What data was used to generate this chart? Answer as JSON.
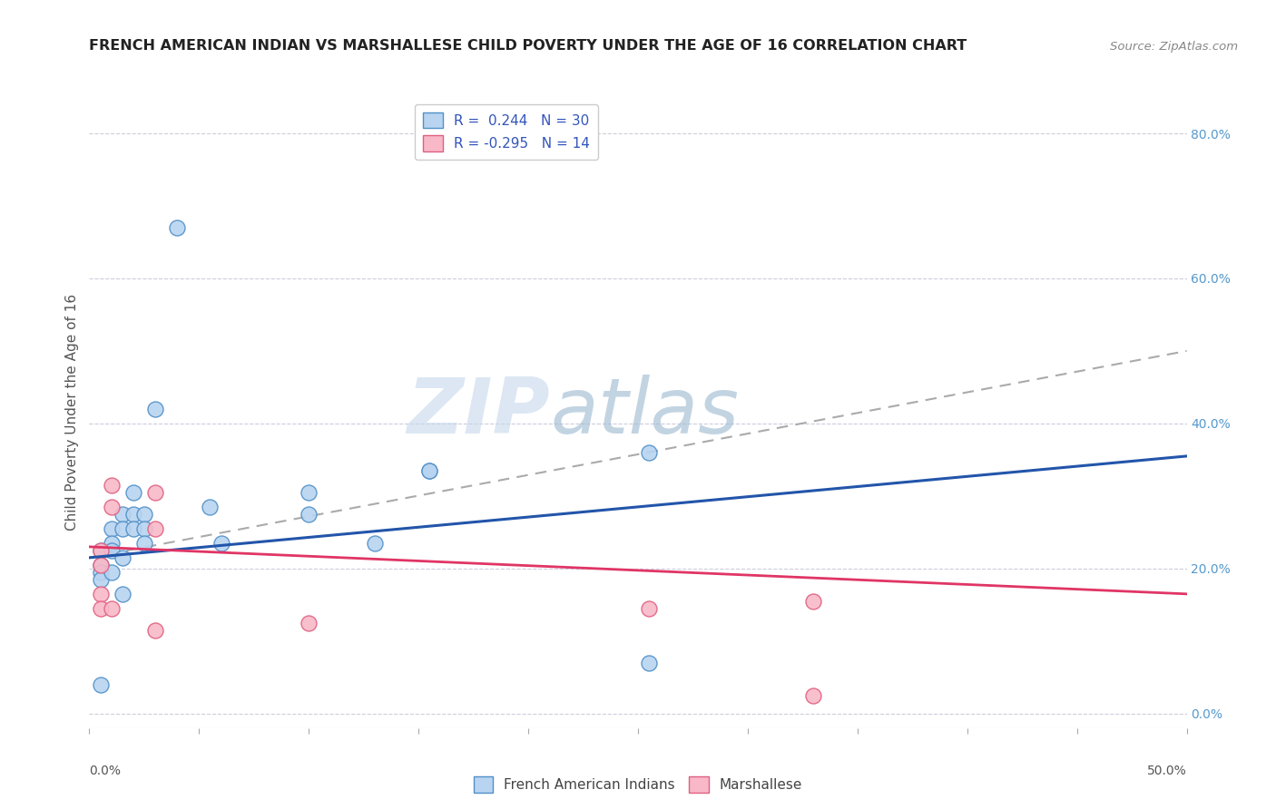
{
  "title": "FRENCH AMERICAN INDIAN VS MARSHALLESE CHILD POVERTY UNDER THE AGE OF 16 CORRELATION CHART",
  "source": "Source: ZipAtlas.com",
  "ylabel": "Child Poverty Under the Age of 16",
  "xlim": [
    0.0,
    0.5
  ],
  "ylim": [
    -0.02,
    0.85
  ],
  "right_yticks": [
    0.0,
    0.2,
    0.4,
    0.6,
    0.8
  ],
  "right_yticklabels": [
    "0.0%",
    "20.0%",
    "40.0%",
    "60.0%",
    "80.0%"
  ],
  "xtick_positions": [
    0.0,
    0.05,
    0.1,
    0.15,
    0.2,
    0.25,
    0.3,
    0.35,
    0.4,
    0.45,
    0.5
  ],
  "legend_label_blue": "R =  0.244   N = 30",
  "legend_label_pink": "R = -0.295   N = 14",
  "blue_scatter_x": [
    0.005,
    0.005,
    0.005,
    0.005,
    0.005,
    0.01,
    0.01,
    0.01,
    0.01,
    0.015,
    0.015,
    0.015,
    0.015,
    0.02,
    0.02,
    0.02,
    0.025,
    0.025,
    0.025,
    0.03,
    0.04,
    0.055,
    0.06,
    0.1,
    0.1,
    0.13,
    0.155,
    0.155,
    0.255,
    0.255
  ],
  "blue_scatter_y": [
    0.225,
    0.205,
    0.195,
    0.185,
    0.04,
    0.255,
    0.235,
    0.225,
    0.195,
    0.275,
    0.255,
    0.215,
    0.165,
    0.305,
    0.275,
    0.255,
    0.275,
    0.255,
    0.235,
    0.42,
    0.67,
    0.285,
    0.235,
    0.305,
    0.275,
    0.235,
    0.335,
    0.335,
    0.36,
    0.07
  ],
  "pink_scatter_x": [
    0.005,
    0.005,
    0.005,
    0.005,
    0.01,
    0.01,
    0.01,
    0.03,
    0.03,
    0.03,
    0.1,
    0.255,
    0.33,
    0.33
  ],
  "pink_scatter_y": [
    0.225,
    0.205,
    0.165,
    0.145,
    0.315,
    0.285,
    0.145,
    0.305,
    0.255,
    0.115,
    0.125,
    0.145,
    0.155,
    0.025
  ],
  "blue_line_x0": 0.0,
  "blue_line_x1": 0.5,
  "blue_line_y0": 0.215,
  "blue_line_y1": 0.355,
  "pink_line_x0": 0.0,
  "pink_line_x1": 0.5,
  "pink_line_y0": 0.23,
  "pink_line_y1": 0.165,
  "dash_line_x0": 0.0,
  "dash_line_x1": 0.5,
  "dash_line_y0": 0.215,
  "dash_line_y1": 0.5,
  "scatter_size": 150,
  "blue_face": "#b8d4f0",
  "blue_edge": "#5090c8",
  "pink_face": "#f8b8c8",
  "pink_edge": "#e06080",
  "blue_line_color": "#2255aa",
  "pink_line_color": "#e03565",
  "dash_color": "#aaaaaa",
  "grid_color": "#ccccdd",
  "right_tick_color": "#5599cc",
  "watermark_zip": "ZIP",
  "watermark_atlas": "atlas",
  "title_fontsize": 11.5,
  "source_fontsize": 9.5,
  "tick_fontsize": 10,
  "ylabel_fontsize": 11,
  "legend_fontsize": 11
}
